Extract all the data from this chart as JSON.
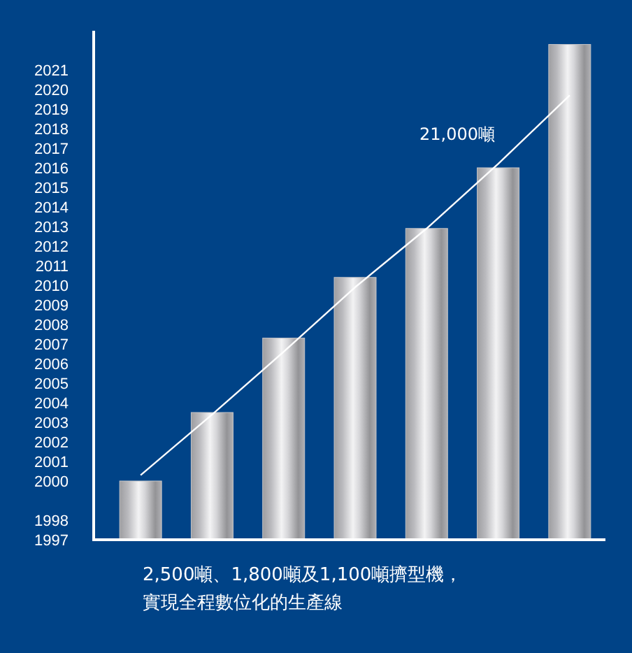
{
  "chart_data": {
    "type": "bar",
    "categories": [
      null,
      null,
      null,
      null,
      null,
      null,
      null
    ],
    "values": [
      2000,
      2003.5,
      2007.3,
      2010.4,
      2012.9,
      2016,
      2022.3
    ],
    "color": "#c4c4c8",
    "series": [
      {
        "type": "line",
        "color": "#ffffff",
        "values": [
          2000.3,
          2003.4,
          2006.6,
          2009.9,
          2012.9,
          2016.2,
          2019.7
        ]
      }
    ],
    "ylim": [
      1997,
      2023
    ],
    "yticks": [
      1997,
      1998,
      2000,
      2001,
      2002,
      2003,
      2004,
      2005,
      2006,
      2007,
      2008,
      2009,
      2010,
      2011,
      2012,
      2013,
      2014,
      2015,
      2016,
      2017,
      2018,
      2019,
      2020,
      2021
    ],
    "tick_labels": "y",
    "grid": false,
    "annotations": [
      "21,000噸",
      "2,500噸、1,800噸及1,100噸擠型機，實現全程數位化的生產線"
    ]
  }
}
